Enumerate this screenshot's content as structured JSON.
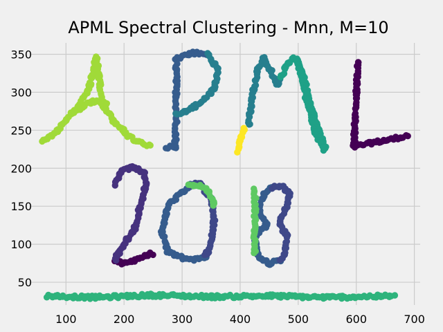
{
  "chart_data": {
    "type": "scatter",
    "title": "APML Spectral Clustering - Mnn, M=10",
    "xlabel": "",
    "ylabel": "",
    "xlim": [
      40,
      710
    ],
    "ylim": [
      20,
      365
    ],
    "xticks": [
      100,
      200,
      300,
      400,
      500,
      600,
      700
    ],
    "yticks": [
      50,
      100,
      150,
      200,
      250,
      300,
      350
    ],
    "grid": true,
    "style": "fivethirtyeight",
    "colormap": "viridis",
    "clusters": [
      {
        "id": 0,
        "color": "#440154",
        "desc": "L and bottom of 2 (partial)",
        "strokes": [
          [
            [
              603,
              340
            ],
            [
              600,
              300
            ],
            [
              598,
              260
            ],
            [
              596,
              228
            ]
          ],
          [
            [
              596,
              228
            ],
            [
              630,
              234
            ],
            [
              660,
              238
            ],
            [
              688,
              243
            ]
          ],
          [
            [
              185,
              78
            ],
            [
              200,
              74
            ],
            [
              220,
              80
            ],
            [
              248,
              88
            ]
          ]
        ]
      },
      {
        "id": 1,
        "color": "#46327e",
        "desc": "2 curve",
        "strokes": [
          [
            [
              185,
              178
            ],
            [
              195,
              196
            ],
            [
              215,
              201
            ],
            [
              235,
              195
            ],
            [
              238,
              178
            ],
            [
              228,
              150
            ],
            [
              218,
              120
            ],
            [
              200,
              100
            ],
            [
              188,
              85
            ],
            [
              185,
              78
            ]
          ]
        ]
      },
      {
        "id": 2,
        "color": "#365c8d",
        "desc": "8 (left half), 0 left, P stem",
        "strokes": [
          [
            [
              455,
              175
            ],
            [
              440,
              165
            ],
            [
              432,
              145
            ],
            [
              445,
              125
            ],
            [
              425,
              110
            ],
            [
              430,
              85
            ],
            [
              450,
              75
            ],
            [
              470,
              78
            ]
          ],
          [
            [
              315,
              178
            ],
            [
              302,
              170
            ],
            [
              275,
              150
            ],
            [
              265,
              115
            ],
            [
              275,
              90
            ],
            [
              300,
              82
            ],
            [
              322,
              80
            ],
            [
              340,
              84
            ]
          ],
          [
            [
              290,
              345
            ],
            [
              290,
              300
            ],
            [
              290,
              260
            ],
            [
              288,
              228
            ],
            [
              272,
              228
            ]
          ],
          [
            [
              290,
              345
            ],
            [
              320,
              352
            ],
            [
              345,
              350
            ]
          ]
        ]
      },
      {
        "id": 3,
        "color": "#3f4889",
        "desc": "8 (right half) and 0 right",
        "strokes": [
          [
            [
              455,
              175
            ],
            [
              475,
              176
            ],
            [
              485,
              165
            ],
            [
              478,
              145
            ],
            [
              468,
              130
            ],
            [
              480,
              110
            ],
            [
              475,
              85
            ],
            [
              470,
              78
            ]
          ],
          [
            [
              340,
              84
            ],
            [
              350,
              100
            ],
            [
              355,
              130
            ],
            [
              350,
              160
            ],
            [
              330,
              180
            ],
            [
              315,
              178
            ]
          ]
        ]
      },
      {
        "id": 4,
        "color": "#277f8e",
        "desc": "P loop and M (left)",
        "strokes": [
          [
            [
              345,
              350
            ],
            [
              362,
              330
            ],
            [
              355,
              305
            ],
            [
              330,
              285
            ],
            [
              305,
              275
            ],
            [
              290,
              270
            ]
          ],
          [
            [
              415,
              257
            ],
            [
              420,
              290
            ],
            [
              430,
              330
            ],
            [
              440,
              345
            ]
          ],
          [
            [
              440,
              345
            ],
            [
              452,
              330
            ],
            [
              465,
              310
            ],
            [
              470,
              320
            ]
          ]
        ]
      },
      {
        "id": 5,
        "color": "#1fa187",
        "desc": "M (right)",
        "strokes": [
          [
            [
              470,
              320
            ],
            [
              480,
              335
            ],
            [
              490,
              345
            ],
            [
              500,
              340
            ],
            [
              510,
              320
            ],
            [
              520,
              285
            ],
            [
              535,
              250
            ],
            [
              547,
              225
            ]
          ],
          [
            [
              498,
              345
            ],
            [
              505,
              320
            ],
            [
              515,
              290
            ],
            [
              528,
              250
            ],
            [
              545,
              225
            ]
          ]
        ]
      },
      {
        "id": 6,
        "color": "#2eb37c",
        "desc": "Bottom horizontal line",
        "strokes": [
          [
            [
              68,
              32
            ],
            [
              150,
              30
            ],
            [
              250,
              33
            ],
            [
              350,
              31
            ],
            [
              450,
              32
            ],
            [
              550,
              30
            ],
            [
              665,
              32
            ]
          ]
        ]
      },
      {
        "id": 7,
        "color": "#5ec962",
        "desc": "1 and top of 0",
        "strokes": [
          [
            [
              425,
              172
            ],
            [
              426,
              150
            ],
            [
              425,
              120
            ],
            [
              425,
              90
            ]
          ],
          [
            [
              312,
              178
            ],
            [
              330,
              178
            ],
            [
              347,
              168
            ],
            [
              355,
              150
            ]
          ]
        ]
      },
      {
        "id": 8,
        "color": "#a0da39",
        "desc": "A",
        "strokes": [
          [
            [
              58,
              234
            ],
            [
              80,
              245
            ],
            [
              100,
              262
            ],
            [
              120,
              280
            ],
            [
              140,
              305
            ],
            [
              152,
              345
            ]
          ],
          [
            [
              152,
              345
            ],
            [
              157,
              320
            ],
            [
              162,
              285
            ],
            [
              180,
              265
            ],
            [
              200,
              248
            ],
            [
              220,
              235
            ],
            [
              245,
              230
            ]
          ],
          [
            [
              110,
              272
            ],
            [
              130,
              283
            ],
            [
              150,
              288
            ],
            [
              172,
              285
            ]
          ]
        ]
      },
      {
        "id": 9,
        "color": "#fde725",
        "desc": "Small stroke near L",
        "strokes": [
          [
            [
              395,
              222
            ],
            [
              400,
              235
            ],
            [
              408,
              252
            ]
          ]
        ]
      }
    ]
  }
}
